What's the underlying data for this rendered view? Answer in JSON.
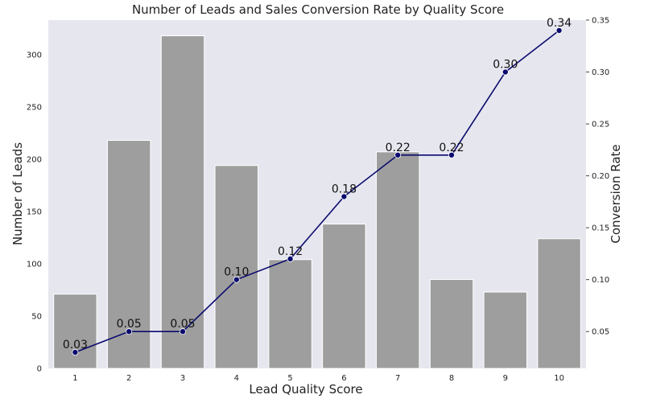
{
  "chart_data": {
    "type": "bar",
    "title": "Number of Leads and Sales Conversion Rate by Quality Score",
    "xlabel": "Lead Quality Score",
    "ylabel": "Number of Leads",
    "y2label": "Conversion Rate",
    "categories": [
      "1",
      "2",
      "3",
      "4",
      "5",
      "6",
      "7",
      "8",
      "9",
      "10"
    ],
    "series": [
      {
        "type": "bar",
        "values": [
          71,
          218,
          318,
          194,
          104,
          138,
          207,
          85,
          73,
          124
        ],
        "color": "#9e9e9e"
      },
      {
        "type": "line",
        "axis": "secondary",
        "values": [
          0.03,
          0.05,
          0.05,
          0.1,
          0.12,
          0.18,
          0.22,
          0.22,
          0.3,
          0.34
        ],
        "labels": [
          "0.03",
          "0.05",
          "0.05",
          "0.10",
          "0.12",
          "0.18",
          "0.22",
          "0.22",
          "0.30",
          "0.34"
        ],
        "color": "#0b0b6e"
      }
    ],
    "ylim": [
      0,
      333
    ],
    "y2lim": [
      0.0145,
      0.35
    ],
    "yticks": [
      "0",
      "50",
      "100",
      "150",
      "200",
      "250",
      "300"
    ],
    "y2ticks": [
      "0.05",
      "0.10",
      "0.15",
      "0.20",
      "0.25",
      "0.30",
      "0.35"
    ],
    "grid": false,
    "background": "#e6e6ef"
  }
}
